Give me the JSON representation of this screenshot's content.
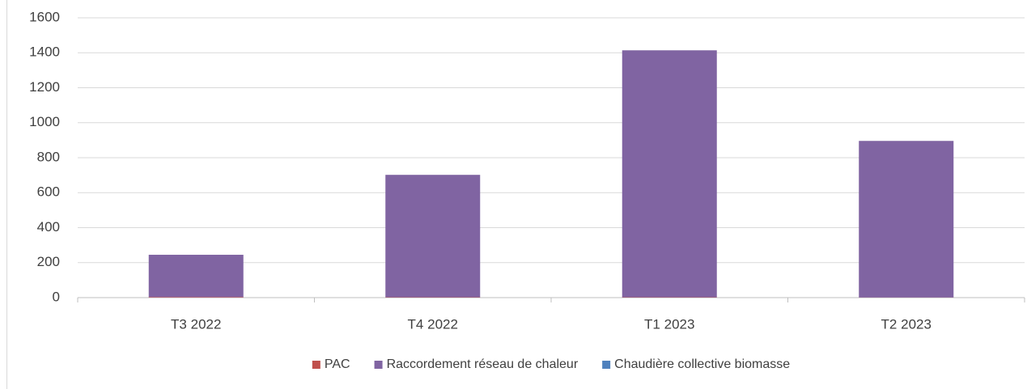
{
  "chart_data": {
    "type": "stacked_bar",
    "categories": [
      "T3 2022",
      "T4 2022",
      "T1 2023",
      "T2 2023"
    ],
    "series": [
      {
        "name": "PAC",
        "color": "#c0504d",
        "values": [
          3,
          2,
          2,
          1
        ]
      },
      {
        "name": "Raccordement réseau de chaleur",
        "color": "#8064a2",
        "values": [
          242,
          700,
          1412,
          895
        ]
      },
      {
        "name": "Chaudière collective biomasse",
        "color": "#4f81bd",
        "values": [
          0,
          0,
          0,
          0
        ]
      }
    ],
    "ylim": [
      0,
      1600
    ],
    "yticks": [
      0,
      200,
      400,
      600,
      800,
      1000,
      1200,
      1400,
      1600
    ],
    "grid": true,
    "legend": "bottom"
  }
}
